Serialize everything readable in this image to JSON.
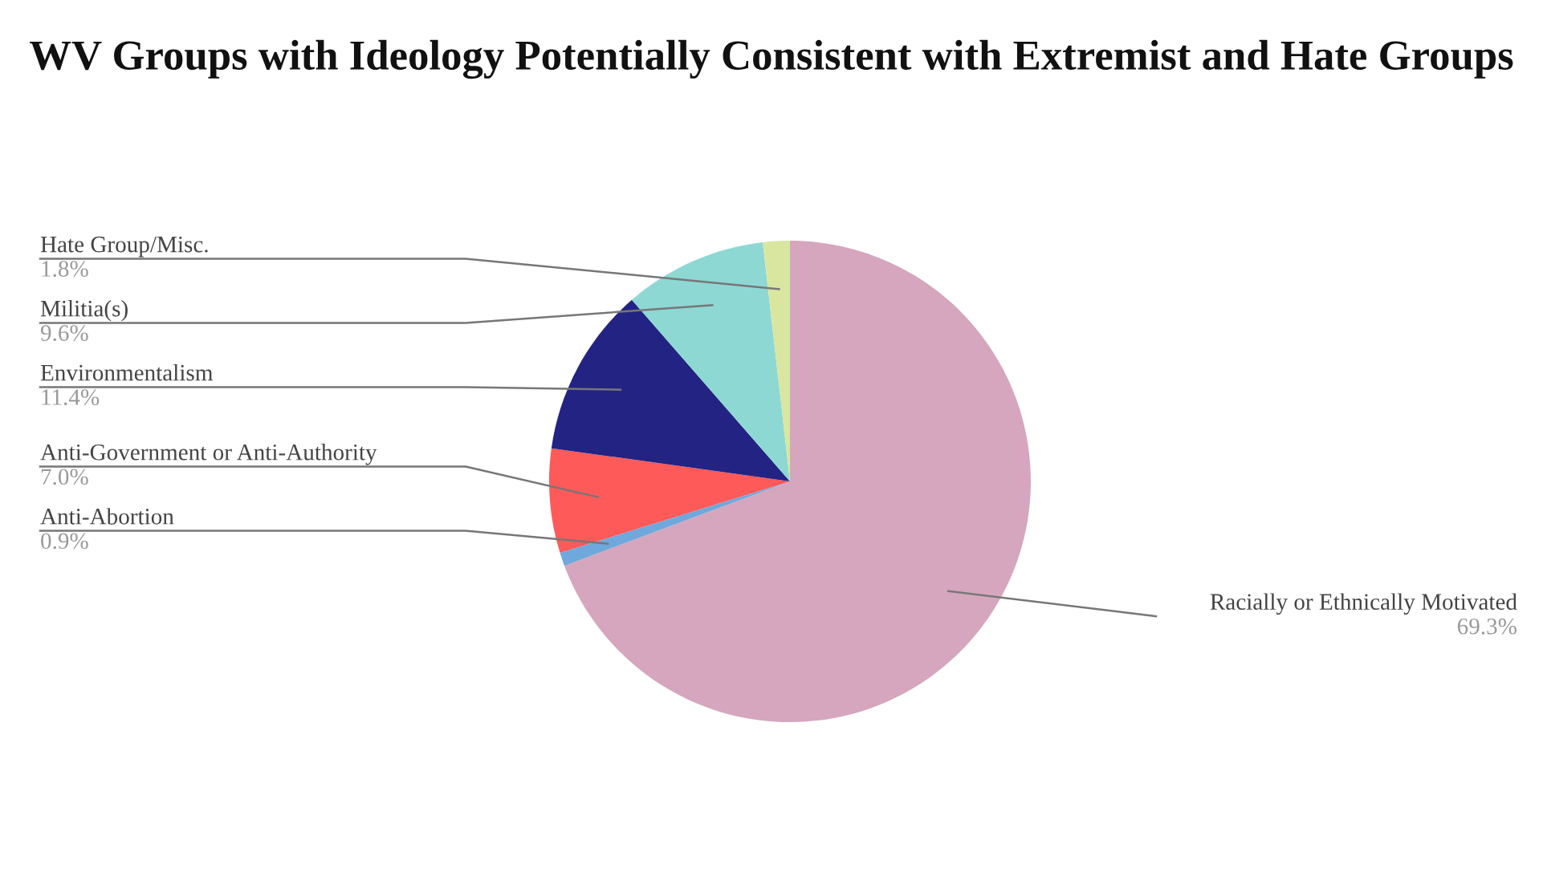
{
  "chart_data": {
    "type": "pie",
    "title": "WV Groups with Ideology Potentially Consistent with Extremist and Hate Groups",
    "categories": [
      "Racially or Ethnically Motivated",
      "Anti-Abortion",
      "Anti-Government or Anti-Authority",
      "Environmentalism",
      "Militia(s)",
      "Hate Group/Misc."
    ],
    "values": [
      69.3,
      0.9,
      7.0,
      11.4,
      9.6,
      1.8
    ],
    "colors": [
      "#d5a6bd",
      "#6fa8dc",
      "#ff5a5a",
      "#232384",
      "#8ed8d4",
      "#d9e6a0"
    ],
    "value_labels": [
      "69.3%",
      "0.9%",
      "7.0%",
      "11.4%",
      "9.6%",
      "1.8%"
    ]
  }
}
